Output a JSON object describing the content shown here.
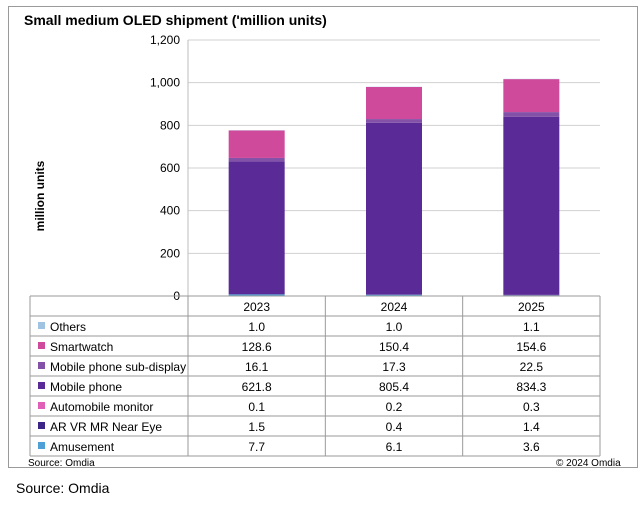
{
  "chart_data": {
    "type": "bar",
    "stacked": true,
    "title": "Small medium OLED shipment ('million units)",
    "ylabel": "million units",
    "ylim": [
      0,
      1200
    ],
    "yticks": [
      "0",
      "200",
      "400",
      "600",
      "800",
      "1,000",
      "1,200"
    ],
    "grid": true,
    "categories": [
      "2023",
      "2024",
      "2025"
    ],
    "series": [
      {
        "name": "Others",
        "values": [
          1.0,
          1.0,
          1.1
        ],
        "labels": [
          "1.0",
          "1.0",
          "1.1"
        ],
        "color": "#9fc3e0"
      },
      {
        "name": "Smartwatch",
        "values": [
          128.6,
          150.4,
          154.6
        ],
        "labels": [
          "128.6",
          "150.4",
          "154.6"
        ],
        "color": "#d04a9b"
      },
      {
        "name": "Mobile phone sub-display",
        "values": [
          16.1,
          17.3,
          22.5
        ],
        "labels": [
          "16.1",
          "17.3",
          "22.5"
        ],
        "color": "#8352a8"
      },
      {
        "name": "Mobile phone",
        "values": [
          621.8,
          805.4,
          834.3
        ],
        "labels": [
          "621.8",
          "805.4",
          "834.3"
        ],
        "color": "#5a2b96"
      },
      {
        "name": "Automobile monitor",
        "values": [
          0.1,
          0.2,
          0.3
        ],
        "labels": [
          "0.1",
          "0.2",
          "0.3"
        ],
        "color": "#e060b8"
      },
      {
        "name": "AR VR MR Near Eye",
        "values": [
          1.5,
          0.4,
          1.4
        ],
        "labels": [
          "1.5",
          "0.4",
          "1.4"
        ],
        "color": "#3d2587"
      },
      {
        "name": "Amusement",
        "values": [
          7.7,
          6.1,
          3.6
        ],
        "labels": [
          "7.7",
          "6.1",
          "3.6"
        ],
        "color": "#4fa0d6"
      }
    ],
    "stack_order": [
      "Amusement",
      "AR VR MR Near Eye",
      "Automobile monitor",
      "Mobile phone",
      "Mobile phone sub-display",
      "Smartwatch",
      "Others"
    ]
  },
  "footer": {
    "source_small": "Source: Omdia",
    "copyright": "© 2024 Omdia",
    "source_big": "Source: Omdia"
  }
}
